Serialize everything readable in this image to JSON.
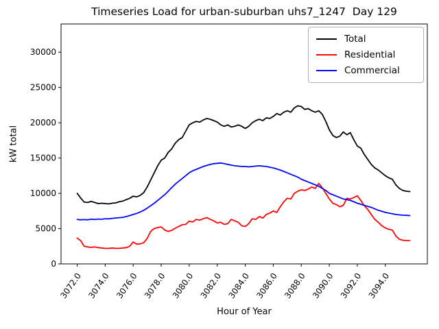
{
  "chart": {
    "title": "Timeseries Load for urban-suburban uhs7_1247  Day 129",
    "xlabel": "Hour of Year",
    "ylabel": "kW total"
  },
  "legend": {
    "items": [
      {
        "label": "Total",
        "color": "#000000"
      },
      {
        "label": "Residential",
        "color": "#ff0000"
      },
      {
        "label": "Commercial",
        "color": "#0000ff"
      }
    ]
  },
  "chart_data": {
    "type": "line",
    "title": "Timeseries Load for urban-suburban uhs7_1247  Day 129",
    "xlabel": "Hour of Year",
    "ylabel": "kW total",
    "grid": false,
    "legend_position": "upper right",
    "xlim": [
      3070.85,
      3097.0
    ],
    "ylim": [
      0,
      34000
    ],
    "x_ticks": [
      3072,
      3074,
      3076,
      3078,
      3080,
      3082,
      3084,
      3086,
      3088,
      3090,
      3092,
      3094
    ],
    "x_tick_labels": [
      "3072.0",
      "3074.0",
      "3076.0",
      "3078.0",
      "3080.0",
      "3082.0",
      "3084.0",
      "3086.0",
      "3088.0",
      "3090.0",
      "3092.0",
      "3094.0"
    ],
    "y_ticks": [
      0,
      5000,
      10000,
      15000,
      20000,
      25000,
      30000
    ],
    "y_tick_labels": [
      "0",
      "5000",
      "10000",
      "15000",
      "20000",
      "25000",
      "30000"
    ],
    "x": [
      3072.0,
      3072.25,
      3072.5,
      3072.75,
      3073.0,
      3073.25,
      3073.5,
      3073.75,
      3074.0,
      3074.25,
      3074.5,
      3074.75,
      3075.0,
      3075.25,
      3075.5,
      3075.75,
      3076.0,
      3076.25,
      3076.5,
      3076.75,
      3077.0,
      3077.25,
      3077.5,
      3077.75,
      3078.0,
      3078.25,
      3078.5,
      3078.75,
      3079.0,
      3079.25,
      3079.5,
      3079.75,
      3080.0,
      3080.25,
      3080.5,
      3080.75,
      3081.0,
      3081.25,
      3081.5,
      3081.75,
      3082.0,
      3082.25,
      3082.5,
      3082.75,
      3083.0,
      3083.25,
      3083.5,
      3083.75,
      3084.0,
      3084.25,
      3084.5,
      3084.75,
      3085.0,
      3085.25,
      3085.5,
      3085.75,
      3086.0,
      3086.25,
      3086.5,
      3086.75,
      3087.0,
      3087.25,
      3087.5,
      3087.75,
      3088.0,
      3088.25,
      3088.5,
      3088.75,
      3089.0,
      3089.25,
      3089.5,
      3089.75,
      3090.0,
      3090.25,
      3090.5,
      3090.75,
      3091.0,
      3091.25,
      3091.5,
      3091.75,
      3092.0,
      3092.25,
      3092.5,
      3092.75,
      3093.0,
      3093.25,
      3093.5,
      3093.75,
      3094.0,
      3094.25,
      3094.5,
      3094.75,
      3095.0,
      3095.25,
      3095.5,
      3095.75
    ],
    "series": [
      {
        "name": "Total",
        "color": "#000000",
        "values": [
          10000,
          9350,
          8750,
          8700,
          8850,
          8700,
          8550,
          8600,
          8550,
          8500,
          8600,
          8650,
          8800,
          8900,
          9100,
          9300,
          9600,
          9500,
          9700,
          10100,
          10900,
          11900,
          12900,
          13900,
          14700,
          15000,
          15800,
          16300,
          17100,
          17600,
          17900,
          18800,
          19700,
          20000,
          20200,
          20100,
          20400,
          20600,
          20500,
          20300,
          20100,
          19700,
          19500,
          19700,
          19400,
          19500,
          19700,
          19500,
          19200,
          19500,
          20000,
          20300,
          20500,
          20300,
          20700,
          20600,
          20900,
          21300,
          21100,
          21500,
          21700,
          21500,
          22100,
          22400,
          22300,
          21900,
          22000,
          21700,
          21500,
          21700,
          21200,
          20200,
          19000,
          18200,
          17900,
          18100,
          18700,
          18300,
          18600,
          17600,
          16700,
          16400,
          15500,
          14800,
          14100,
          13600,
          13300,
          12900,
          12500,
          12200,
          12000,
          11200,
          10700,
          10400,
          10300,
          10250
        ]
      },
      {
        "name": "Residential",
        "color": "#ff0000",
        "values": [
          3650,
          3300,
          2500,
          2400,
          2350,
          2400,
          2300,
          2250,
          2200,
          2200,
          2250,
          2200,
          2200,
          2250,
          2300,
          2500,
          3100,
          2800,
          2850,
          3000,
          3600,
          4600,
          5000,
          5150,
          5250,
          4800,
          4600,
          4750,
          5050,
          5300,
          5550,
          5600,
          6050,
          5950,
          6300,
          6200,
          6400,
          6550,
          6300,
          6100,
          5800,
          5900,
          5600,
          5700,
          6300,
          6100,
          5900,
          5400,
          5300,
          5700,
          6400,
          6300,
          6700,
          6500,
          7000,
          7200,
          7500,
          7300,
          8100,
          8800,
          9300,
          9200,
          10000,
          10300,
          10500,
          10400,
          10600,
          10900,
          10700,
          11400,
          10800,
          10000,
          9200,
          8600,
          8400,
          8100,
          8300,
          9300,
          9200,
          9400,
          9650,
          9000,
          8250,
          7700,
          7000,
          6300,
          5900,
          5400,
          5100,
          4900,
          4800,
          3950,
          3500,
          3350,
          3300,
          3300
        ]
      },
      {
        "name": "Commercial",
        "color": "#0000ff",
        "values": [
          6300,
          6250,
          6280,
          6250,
          6330,
          6300,
          6350,
          6320,
          6400,
          6380,
          6450,
          6500,
          6550,
          6600,
          6700,
          6850,
          7000,
          7150,
          7350,
          7600,
          7900,
          8250,
          8600,
          9000,
          9400,
          9800,
          10300,
          10800,
          11300,
          11700,
          12100,
          12500,
          12900,
          13200,
          13400,
          13600,
          13800,
          13950,
          14100,
          14200,
          14250,
          14300,
          14200,
          14100,
          14000,
          13900,
          13850,
          13800,
          13800,
          13750,
          13800,
          13850,
          13900,
          13850,
          13800,
          13700,
          13600,
          13450,
          13300,
          13100,
          12900,
          12700,
          12500,
          12300,
          12000,
          11800,
          11600,
          11400,
          11200,
          11000,
          10700,
          10400,
          10000,
          9800,
          9600,
          9400,
          9200,
          9100,
          9000,
          8800,
          8600,
          8450,
          8300,
          8150,
          8000,
          7800,
          7600,
          7450,
          7300,
          7200,
          7100,
          7000,
          6950,
          6900,
          6880,
          6850
        ]
      }
    ]
  }
}
